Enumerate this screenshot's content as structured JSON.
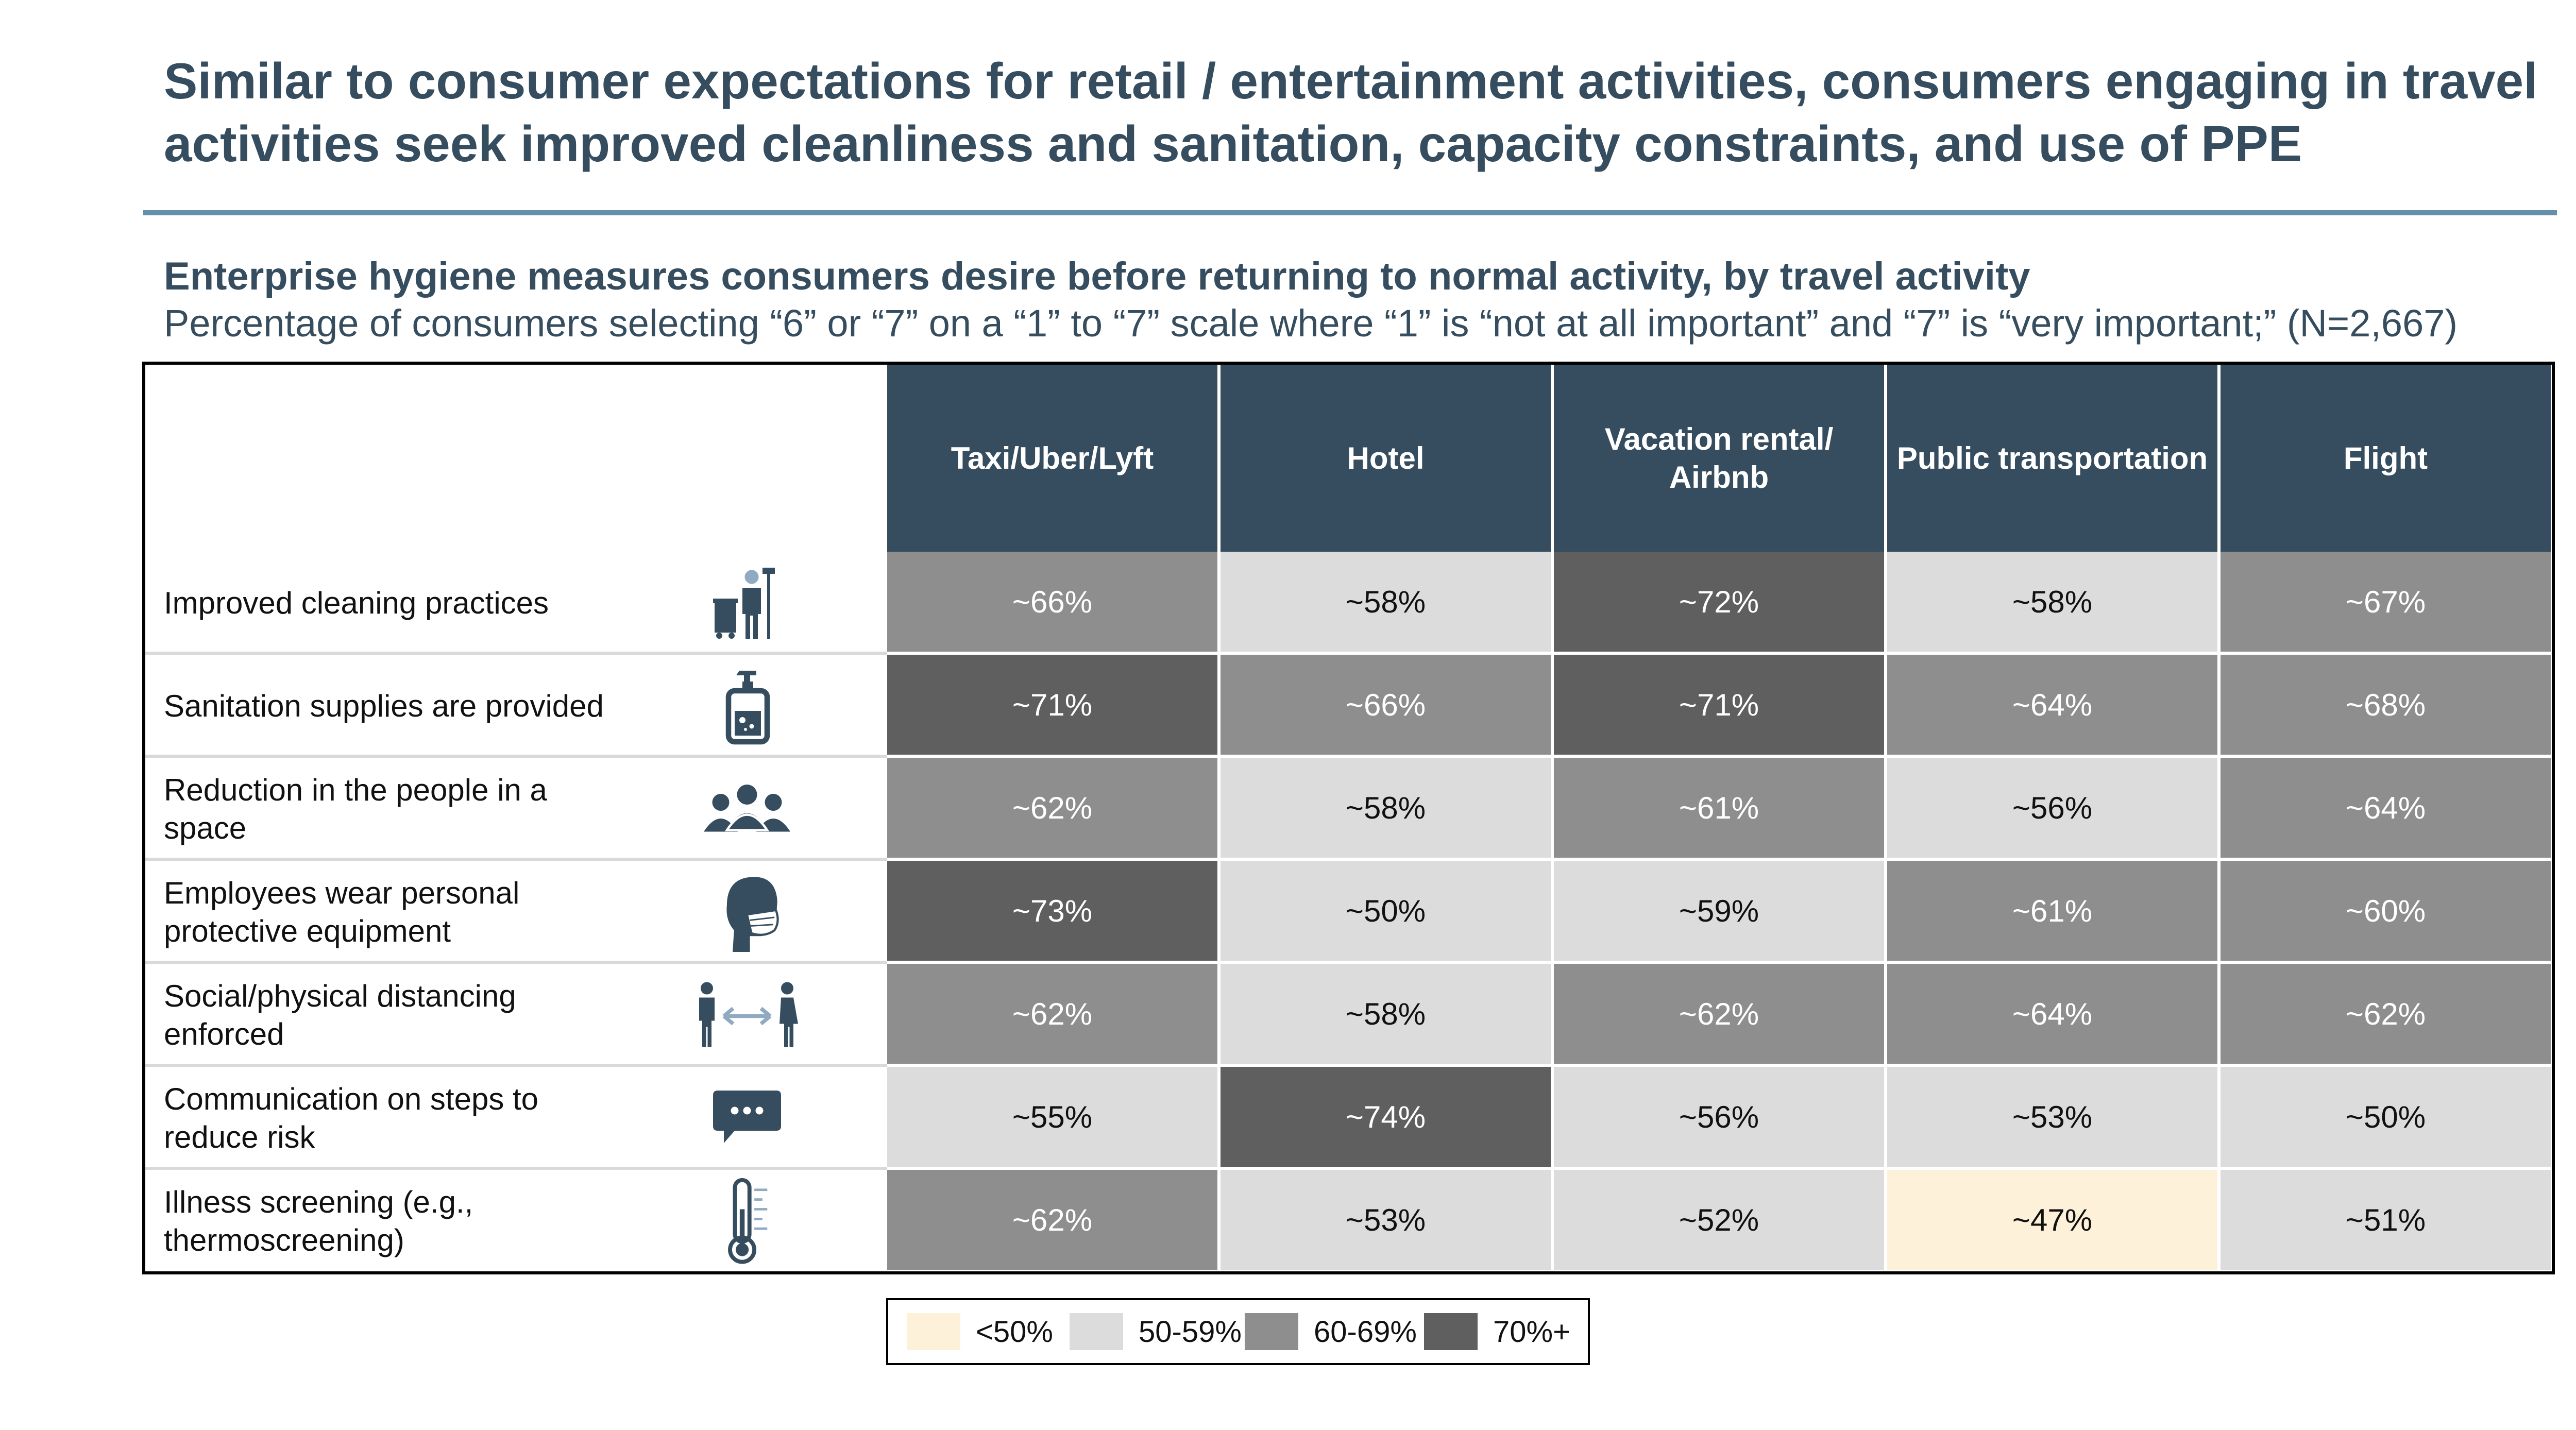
{
  "header": {
    "title": "Similar to consumer expectations for retail / entertainment activities, consumers engaging in travel activities seek improved cleanliness and sanitation, capacity constraints, and use of PPE",
    "subtitle": "Enterprise hygiene measures consumers desire before returning to normal activity, by travel activity",
    "subtitle_note": "Percentage of consumers selecting “6” or “7” on a “1” to “7” scale where “1” is “not at all important” and “7” is “very important;” (N=2,667)"
  },
  "chart_data": {
    "type": "heatmap",
    "title": "Enterprise hygiene measures consumers desire before returning to normal activity, by travel activity",
    "columns": [
      "Taxi/Uber/Lyft",
      "Hotel",
      "Vacation rental/ Airbnb",
      "Public transportation",
      "Flight"
    ],
    "rows": [
      {
        "label": "Improved cleaning practices",
        "icon": "cleaning-staff-icon",
        "values": [
          66,
          58,
          72,
          58,
          67
        ],
        "display": [
          "~66%",
          "~58%",
          "~72%",
          "~58%",
          "~67%"
        ]
      },
      {
        "label": "Sanitation supplies are provided",
        "icon": "sanitizer-bottle-icon",
        "values": [
          71,
          66,
          71,
          64,
          68
        ],
        "display": [
          "~71%",
          "~66%",
          "~71%",
          "~64%",
          "~68%"
        ]
      },
      {
        "label": "Reduction in the people in a space",
        "icon": "group-of-people-icon",
        "values": [
          62,
          58,
          61,
          56,
          64
        ],
        "display": [
          "~62%",
          "~58%",
          "~61%",
          "~56%",
          "~64%"
        ]
      },
      {
        "label": "Employees wear personal protective equipment",
        "icon": "face-mask-icon",
        "values": [
          73,
          50,
          59,
          61,
          60
        ],
        "display": [
          "~73%",
          "~50%",
          "~59%",
          "~61%",
          "~60%"
        ]
      },
      {
        "label": "Social/physical distancing enforced",
        "icon": "distancing-people-icon",
        "values": [
          62,
          58,
          62,
          64,
          62
        ],
        "display": [
          "~62%",
          "~58%",
          "~62%",
          "~64%",
          "~62%"
        ]
      },
      {
        "label": "Communication on steps to reduce risk",
        "icon": "chat-bubble-icon",
        "values": [
          55,
          74,
          56,
          53,
          50
        ],
        "display": [
          "~55%",
          "~74%",
          "~56%",
          "~53%",
          "~50%"
        ]
      },
      {
        "label": "Illness screening (e.g., thermoscreening)",
        "icon": "thermometer-icon",
        "values": [
          62,
          53,
          52,
          47,
          51
        ],
        "display": [
          "~62%",
          "~53%",
          "~52%",
          "~47%",
          "~51%"
        ]
      }
    ],
    "legend": [
      {
        "label": "<50%",
        "min": 0,
        "max": 49,
        "color": "#fdf2d9",
        "text_color": "#111111"
      },
      {
        "label": "50-59%",
        "min": 50,
        "max": 59,
        "color": "#dcdcdc",
        "text_color": "#111111"
      },
      {
        "label": "60-69%",
        "min": 60,
        "max": 69,
        "color": "#8e8e8e",
        "text_color": "#ffffff"
      },
      {
        "label": "70%+",
        "min": 70,
        "max": 100,
        "color": "#5f5f5f",
        "text_color": "#ffffff"
      }
    ],
    "legend_position": "bottom-center"
  },
  "colors": {
    "header_bg": "#354d5e",
    "title_text": "#354d5e",
    "title_rule": "#6590ab",
    "icon_primary": "#354d5e",
    "icon_accent": "#8faac1"
  }
}
